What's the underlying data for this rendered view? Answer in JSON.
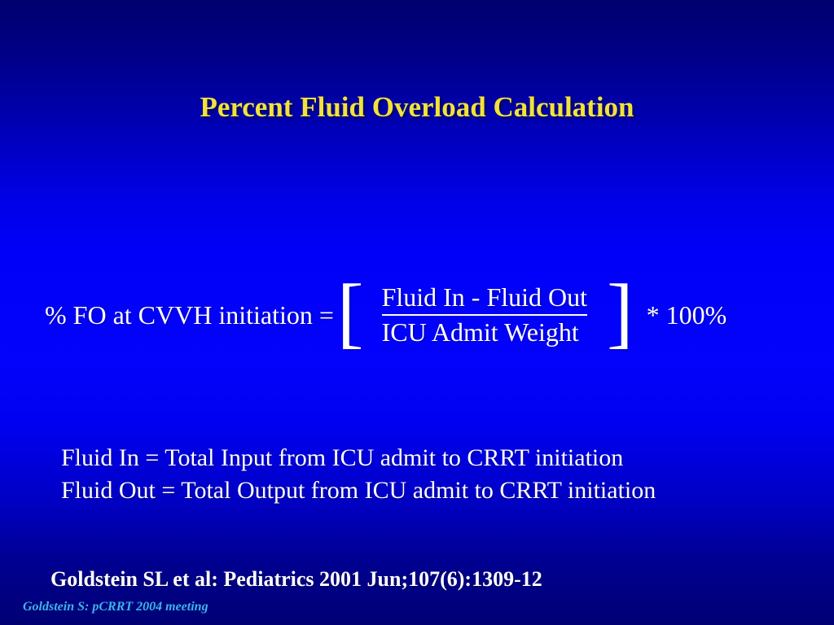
{
  "slide": {
    "title": "Percent Fluid Overload Calculation",
    "formula": {
      "lhs": "% FO at CVVH initiation =",
      "bracket_left": "[",
      "numerator": "Fluid In - Fluid Out",
      "denominator": "ICU Admit Weight",
      "bracket_right": "]",
      "multiplier": "* 100%"
    },
    "definitions": {
      "fluid_in": "Fluid In = Total Input from ICU admit to CRRT initiation",
      "fluid_out": "Fluid Out = Total Output from ICU admit to CRRT initiation"
    },
    "citation": "Goldstein SL et al: Pediatrics 2001 Jun;107(6):1309-12",
    "footer": "Goldstein S: pCRRT 2004 meeting",
    "colors": {
      "title_text": "#f2e23a",
      "body_text": "#ffffff",
      "footer_text": "#3cb4e6",
      "background_top": "#00006e",
      "background_middle": "#0303fc",
      "background_bottom": "#000074"
    }
  }
}
